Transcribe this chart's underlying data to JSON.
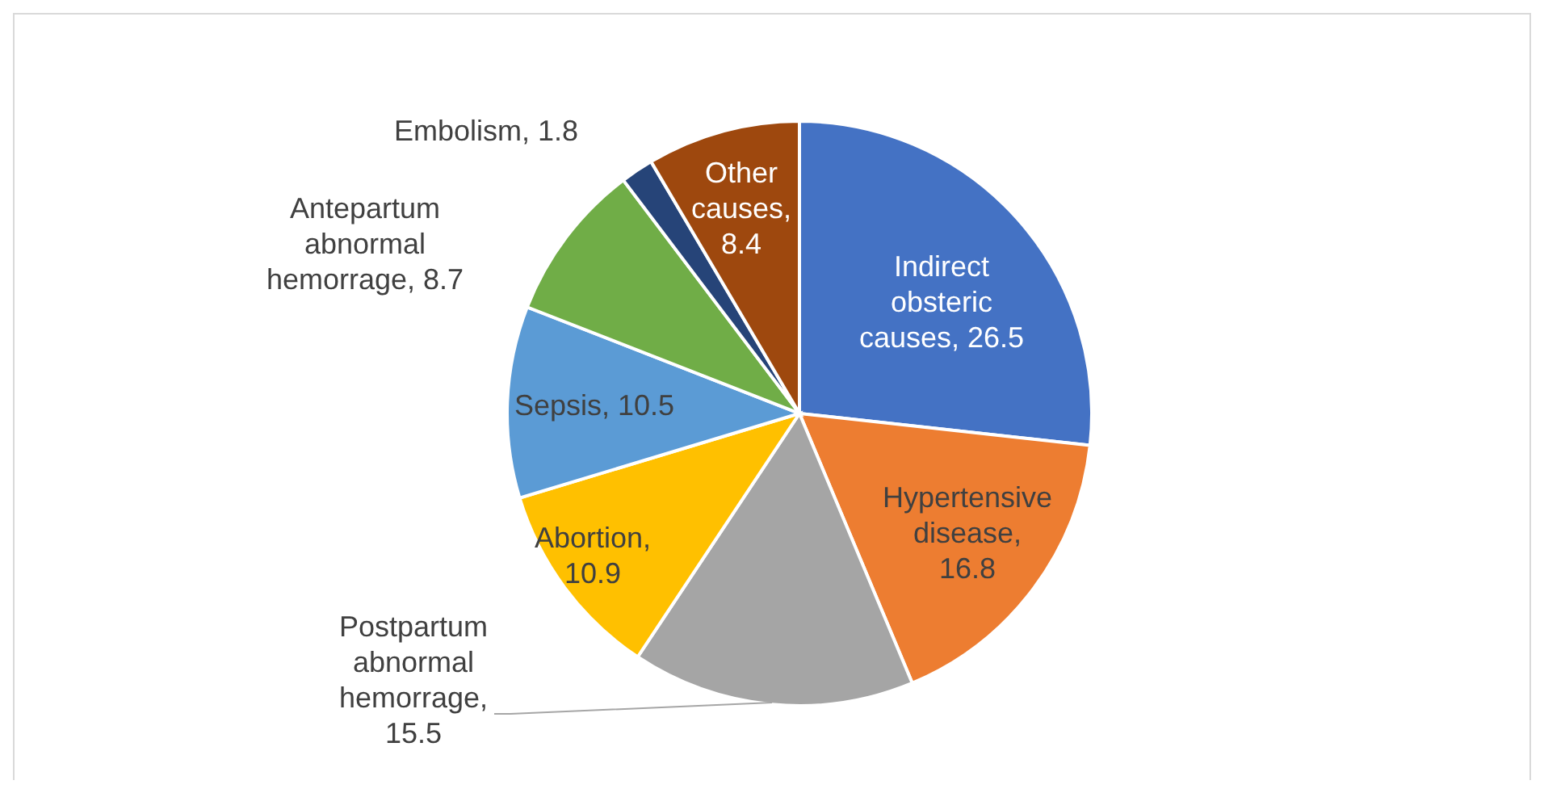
{
  "chart_data": {
    "type": "pie",
    "categories": [
      "Indirect obsteric causes",
      "Hypertensive disease",
      "Postpartum abnormal hemorrage",
      "Abortion",
      "Sepsis",
      "Antepartum abnormal hemorrage",
      "Embolism",
      "Other causes"
    ],
    "values": [
      26.5,
      16.8,
      15.5,
      10.9,
      10.5,
      8.7,
      1.8,
      8.4
    ],
    "value_labels": [
      ", 26.5",
      ",\n16.8",
      ",\n15.5",
      ",\n10.9",
      ", 10.5",
      ", 8.7",
      ", 1.8",
      ",\n8.4"
    ],
    "colors": [
      "#4472c4",
      "#ed7d31",
      "#a5a5a5",
      "#ffc000",
      "#5b9bd5",
      "#70ad47",
      "#264478",
      "#9e480e"
    ],
    "legend": false
  }
}
